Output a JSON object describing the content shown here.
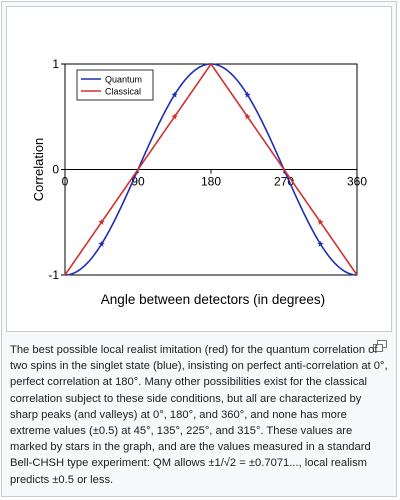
{
  "chart_data": {
    "type": "line",
    "title": "",
    "xlabel": "Angle between detectors (in degrees)",
    "ylabel": "Correlation",
    "xlim": [
      0,
      360
    ],
    "ylim": [
      -1,
      1
    ],
    "x_ticks": [
      0,
      90,
      180,
      270,
      360
    ],
    "y_ticks": [
      -1,
      0,
      1
    ],
    "grid": false,
    "legend_position": "top-left",
    "series": [
      {
        "name": "Quantum",
        "color": "#1f2fb4",
        "formula": "-cos(angle)",
        "x": [
          0,
          15,
          30,
          45,
          60,
          75,
          90,
          105,
          120,
          135,
          150,
          165,
          180,
          195,
          210,
          225,
          240,
          255,
          270,
          285,
          300,
          315,
          330,
          345,
          360
        ],
        "y": [
          -1,
          -0.966,
          -0.866,
          -0.707,
          -0.5,
          -0.259,
          0,
          0.259,
          0.5,
          0.707,
          0.866,
          0.966,
          1,
          0.966,
          0.866,
          0.707,
          0.5,
          0.259,
          0,
          -0.259,
          -0.5,
          -0.707,
          -0.866,
          -0.966,
          -1
        ]
      },
      {
        "name": "Classical",
        "color": "#d0312d",
        "x": [
          0,
          180,
          360
        ],
        "y": [
          -1,
          1,
          -1
        ]
      }
    ],
    "star_markers": {
      "x": [
        45,
        135,
        225,
        315
      ],
      "Quantum": [
        -0.707,
        0.707,
        0.707,
        -0.707
      ],
      "Classical": [
        -0.5,
        0.5,
        0.5,
        -0.5
      ]
    }
  },
  "caption": {
    "text": "The best possible local realist imitation (red) for the quantum correlation of two spins in the singlet state (blue), insisting on perfect anti-correlation at 0°, perfect correlation at 180°. Many other possibilities exist for the classical correlation subject to these side conditions, but all are characterized by sharp peaks (and valleys) at 0°, 180°, and 360°, and none has more extreme values (±0.5) at 45°, 135°, 225°, and 315°. These values are marked by stars in the graph, and are the values measured in a standard Bell-CHSH type experiment: QM allows ±1/√2 = ±0.7071..., local realism predicts ±0.5 or less."
  },
  "icons": {
    "magnify": "enlarge-icon"
  }
}
